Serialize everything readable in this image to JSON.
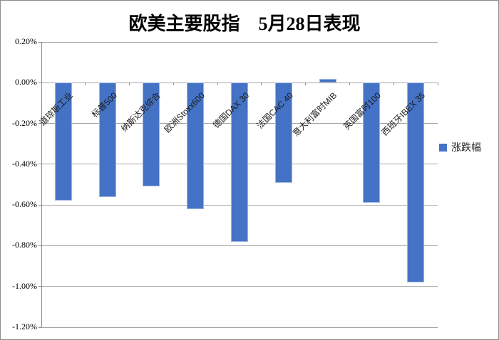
{
  "window": {
    "background": "#FFFFFF",
    "border_color": "#8C8C8C"
  },
  "chart_data": {
    "type": "bar",
    "title": "欧美主要股指　5月28日表现",
    "categories": [
      "道琼斯工业",
      "标普500",
      "纳斯达克综合",
      "欧洲Stoxx600",
      "德国DAX 30",
      "法国CAC 40",
      "意大利富时MIB",
      "英国富时100",
      "西班牙IBEX 35"
    ],
    "series": [
      {
        "name": "涨跌幅",
        "values": [
          -0.58,
          -0.56,
          -0.51,
          -0.62,
          -0.78,
          -0.49,
          0.02,
          -0.59,
          -0.98
        ]
      }
    ],
    "unit": "%",
    "xlabel": "",
    "ylabel": "",
    "ylim": [
      -1.2,
      0.2
    ],
    "ytick_step": 0.2,
    "ytick_labels": [
      "0.20%",
      "0.00%",
      "-0.20%",
      "-0.40%",
      "-0.60%",
      "-0.80%",
      "-1.00%",
      "-1.20%"
    ],
    "grid": true,
    "legend_position": "right",
    "colors": {
      "bar_fill": "#4472C4",
      "bar_border": "#9DB6E4",
      "gridline": "#A6A6A6",
      "axis": "#8C8C8C",
      "text": "#000000"
    }
  }
}
